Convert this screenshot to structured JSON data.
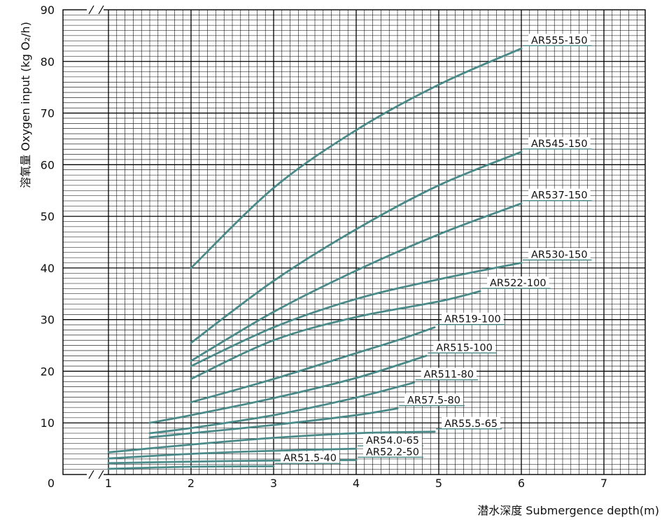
{
  "chart_data": {
    "type": "line",
    "title": "",
    "xlabel": "潜水深度 Submergence depth(m)",
    "ylabel": "溶氧量 Oxygen input (kg O₂/h)",
    "xlim": [
      0,
      7.5
    ],
    "ylim": [
      0,
      90
    ],
    "x_ticks": [
      "0",
      "1",
      "2",
      "3",
      "4",
      "5",
      "6",
      "7"
    ],
    "y_ticks": [
      "10",
      "20",
      "30",
      "40",
      "50",
      "60",
      "70",
      "80",
      "90"
    ],
    "axis_breaks": [
      "x",
      "y"
    ],
    "grid": true,
    "line_color": "#4a8a88",
    "grid_color": "#000000",
    "series": [
      {
        "name": "AR555-150",
        "x": [
          2,
          3,
          4,
          5,
          6
        ],
        "y": [
          40,
          55.5,
          66.7,
          75.5,
          82.5
        ]
      },
      {
        "name": "AR545-150",
        "x": [
          2,
          3,
          4,
          5,
          6
        ],
        "y": [
          25.5,
          37.5,
          47.5,
          56,
          62.5
        ]
      },
      {
        "name": "AR537-150",
        "x": [
          2,
          3,
          4,
          5,
          6
        ],
        "y": [
          22,
          31.5,
          39.5,
          46.5,
          52.5
        ]
      },
      {
        "name": "AR530-150",
        "x": [
          2,
          3,
          4,
          5,
          6
        ],
        "y": [
          21,
          28.5,
          34,
          37.8,
          41
        ]
      },
      {
        "name": "AR522-100",
        "x": [
          2,
          3,
          4,
          5,
          5.5
        ],
        "y": [
          18.5,
          26,
          30.5,
          33.5,
          35.5
        ]
      },
      {
        "name": "AR519-100",
        "x": [
          2,
          3,
          4,
          4.5,
          4.95
        ],
        "y": [
          14,
          18.5,
          23.5,
          26,
          28.5
        ]
      },
      {
        "name": "AR515-100",
        "x": [
          1.5,
          2,
          3,
          4,
          4.85
        ],
        "y": [
          10,
          11.5,
          14.8,
          18.7,
          23
        ]
      },
      {
        "name": "AR511-80",
        "x": [
          1.5,
          2,
          3,
          4,
          4.7
        ],
        "y": [
          8,
          9,
          11.5,
          14.9,
          17.8
        ]
      },
      {
        "name": "AR57.5-80",
        "x": [
          1.5,
          2,
          3,
          4,
          4.5
        ],
        "y": [
          7.2,
          8,
          9.6,
          11.5,
          12.8
        ]
      },
      {
        "name": "AR55.5-65",
        "x": [
          1,
          2,
          3,
          4,
          4.95
        ],
        "y": [
          4.3,
          5.8,
          7.1,
          8,
          8.3
        ]
      },
      {
        "name": "AR54.0-65",
        "x": [
          1,
          2,
          3,
          4
        ],
        "y": [
          3.1,
          4,
          4.6,
          5
        ]
      },
      {
        "name": "AR52.2-50",
        "x": [
          1,
          2,
          3,
          4
        ],
        "y": [
          2.2,
          2.5,
          2.7,
          2.8
        ]
      },
      {
        "name": "AR51.5-40",
        "x": [
          1,
          2,
          3
        ],
        "y": [
          1.1,
          1.5,
          1.6
        ]
      }
    ]
  }
}
